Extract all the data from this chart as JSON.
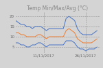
{
  "title": "Temp Min/Max/Avg (°C)",
  "x_ticks_labels": [
    "11/11/2017",
    "26/11/2017"
  ],
  "x_ticks_pos": [
    10,
    25
  ],
  "x_range": [
    0,
    30
  ],
  "y_range": [
    2,
    22
  ],
  "y_ticks": [
    5,
    10,
    15,
    20
  ],
  "bg_color": "#d4d4d4",
  "max_color": "#4472c4",
  "avg_color": "#ed7d31",
  "min_color": "#4472c4",
  "line_width": 0.7,
  "title_fontsize": 5.5,
  "tick_fontsize": 4.0,
  "max_data": [
    18,
    17,
    16,
    16,
    15,
    15,
    14,
    15,
    15,
    15,
    14,
    13,
    14,
    14,
    14,
    14,
    14,
    14,
    19,
    20,
    19,
    18,
    14,
    12,
    11,
    11,
    11,
    11,
    12,
    13
  ],
  "avg_data": [
    12,
    12,
    11,
    11,
    10,
    10,
    10,
    10,
    11,
    11,
    10,
    9,
    10,
    10,
    10,
    10,
    10,
    10,
    13,
    14,
    13,
    12,
    9,
    8,
    7,
    7,
    7,
    7,
    8,
    9
  ],
  "min_data": [
    7,
    7,
    6,
    6,
    5,
    5,
    6,
    6,
    7,
    7,
    6,
    5,
    6,
    6,
    6,
    6,
    6,
    6,
    8,
    8,
    8,
    7,
    5,
    4,
    4,
    3,
    4,
    4,
    4,
    5
  ]
}
